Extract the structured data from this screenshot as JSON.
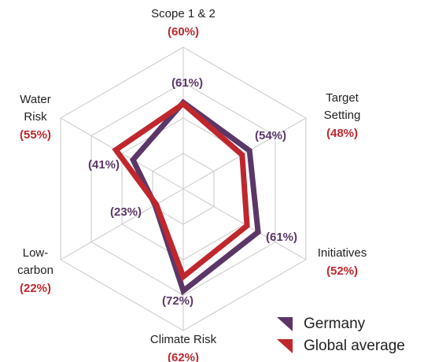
{
  "chart_data": {
    "type": "radar",
    "categories": [
      [
        "Scope 1 & 2"
      ],
      [
        "Target",
        "Setting"
      ],
      [
        "Initiatives"
      ],
      [
        "Climate Risk"
      ],
      [
        "Low-",
        "carbon"
      ],
      [
        "Water",
        "Risk"
      ]
    ],
    "series": [
      {
        "name": "Germany",
        "color": "#5b3768",
        "values": [
          61,
          54,
          61,
          72,
          23,
          41
        ],
        "value_labels": [
          "(61%)",
          "(54%)",
          "(61%)",
          "(72%)",
          "(23%)",
          "(41%)"
        ]
      },
      {
        "name": "Global average",
        "color": "#c0272d",
        "values": [
          60,
          48,
          52,
          62,
          22,
          55
        ],
        "value_labels": [
          "(60%)",
          "(48%)",
          "(52%)",
          "(62%)",
          "(22%)",
          "(55%)"
        ]
      }
    ],
    "ylim": [
      0,
      100
    ],
    "yticks": [
      25,
      50,
      75,
      100
    ],
    "grid": true
  }
}
